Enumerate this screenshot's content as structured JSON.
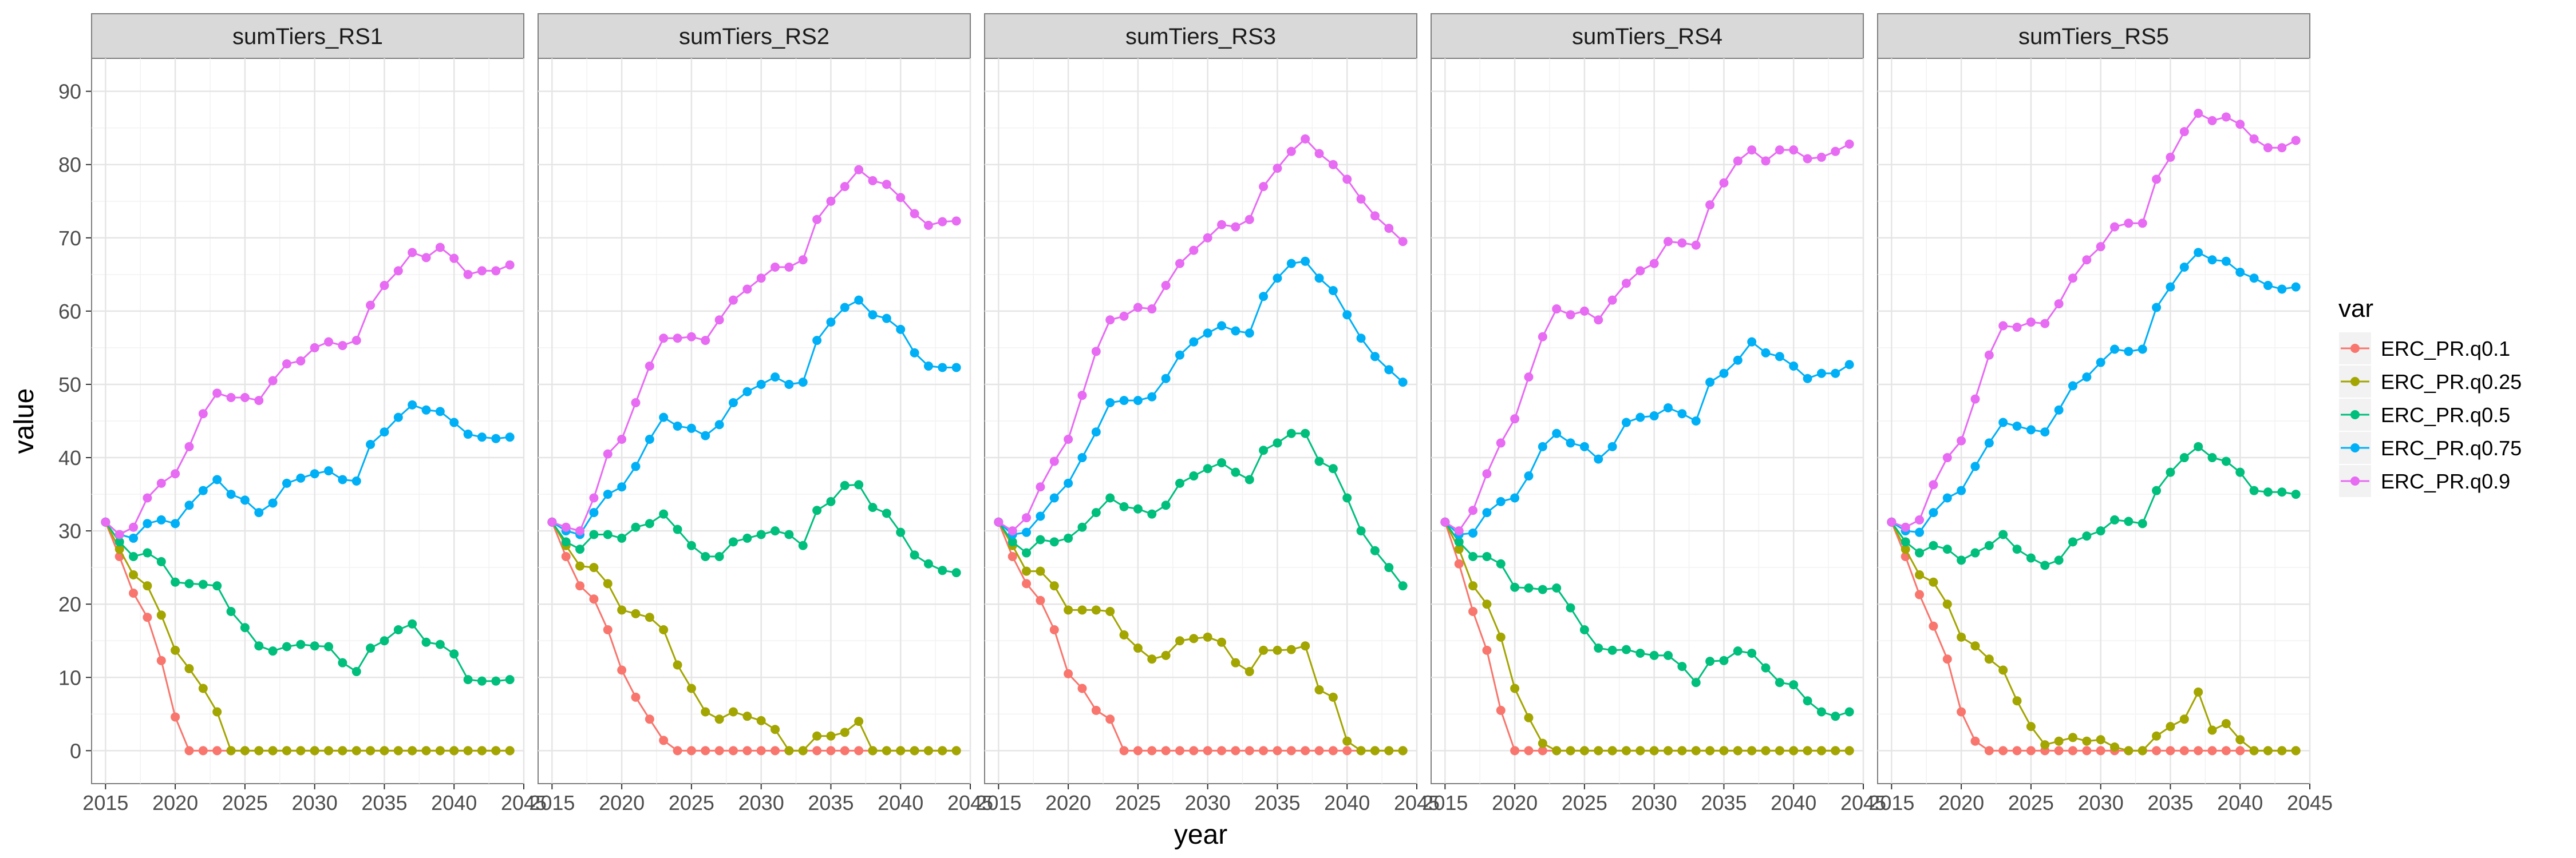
{
  "chart_data": {
    "type": "line",
    "xlabel": "year",
    "ylabel": "value",
    "xlim": [
      2014,
      2045
    ],
    "ylim": [
      -4.5,
      94.5
    ],
    "x_ticks": [
      2015,
      2020,
      2025,
      2030,
      2035,
      2040,
      2045
    ],
    "y_ticks": [
      0,
      10,
      20,
      30,
      40,
      50,
      60,
      70,
      80,
      90
    ],
    "grid": true,
    "markers": "filled-circles",
    "legend": {
      "title": "var",
      "position": "right"
    },
    "x": [
      2015,
      2016,
      2017,
      2018,
      2019,
      2020,
      2021,
      2022,
      2023,
      2024,
      2025,
      2026,
      2027,
      2028,
      2029,
      2030,
      2031,
      2032,
      2033,
      2034,
      2035,
      2036,
      2037,
      2038,
      2039,
      2040,
      2041,
      2042,
      2043,
      2044
    ],
    "series_names": [
      "ERC_PR.q0.1",
      "ERC_PR.q0.25",
      "ERC_PR.q0.5",
      "ERC_PR.q0.75",
      "ERC_PR.q0.9"
    ],
    "colors": [
      "#F8766D",
      "#A3A500",
      "#00BF7D",
      "#00B0F6",
      "#E76BF3"
    ],
    "panels": [
      {
        "label": "sumTiers_RS1",
        "series": [
          {
            "name": "ERC_PR.q0.1",
            "values": [
              31.2,
              26.5,
              21.5,
              18.2,
              12.3,
              4.6,
              0,
              0,
              0,
              0,
              0,
              0,
              0,
              0,
              0,
              0,
              0,
              0,
              0,
              0,
              0,
              0,
              0,
              0,
              0,
              0,
              0,
              0,
              0,
              0
            ]
          },
          {
            "name": "ERC_PR.q0.25",
            "values": [
              31.2,
              27.5,
              24.0,
              22.5,
              18.5,
              13.7,
              11.2,
              8.5,
              5.3,
              0,
              0,
              0,
              0,
              0,
              0,
              0,
              0,
              0,
              0,
              0,
              0,
              0,
              0,
              0,
              0,
              0,
              0,
              0,
              0,
              0
            ]
          },
          {
            "name": "ERC_PR.q0.5",
            "values": [
              31.2,
              28.5,
              26.5,
              27.0,
              25.8,
              23.0,
              22.8,
              22.7,
              22.5,
              19.0,
              16.8,
              14.3,
              13.6,
              14.2,
              14.5,
              14.3,
              14.2,
              12.0,
              10.8,
              14.0,
              15.0,
              16.5,
              17.3,
              14.8,
              14.5,
              13.2,
              9.7,
              9.5,
              9.5,
              9.7
            ]
          },
          {
            "name": "ERC_PR.q0.75",
            "values": [
              31.2,
              29.5,
              29.0,
              31.0,
              31.5,
              31.0,
              33.5,
              35.5,
              37.0,
              35.0,
              34.2,
              32.5,
              33.8,
              36.5,
              37.2,
              37.8,
              38.2,
              37.0,
              36.8,
              41.8,
              43.5,
              45.5,
              47.2,
              46.5,
              46.3,
              44.8,
              43.2,
              42.8,
              42.6,
              42.8
            ]
          },
          {
            "name": "ERC_PR.q0.9",
            "values": [
              31.2,
              29.5,
              30.5,
              34.5,
              36.5,
              37.8,
              41.5,
              46.0,
              48.8,
              48.2,
              48.2,
              47.8,
              50.5,
              52.8,
              53.2,
              55.0,
              55.8,
              55.3,
              56.0,
              60.8,
              63.5,
              65.5,
              68.0,
              67.3,
              68.7,
              67.2,
              65.0,
              65.5,
              65.5,
              66.3
            ]
          }
        ]
      },
      {
        "label": "sumTiers_RS2",
        "series": [
          {
            "name": "ERC_PR.q0.1",
            "values": [
              31.2,
              26.5,
              22.5,
              20.7,
              16.5,
              11.0,
              7.3,
              4.3,
              1.4,
              0,
              0,
              0,
              0,
              0,
              0,
              0,
              0,
              0,
              0,
              0,
              0,
              0,
              0,
              0,
              0,
              0,
              0,
              0,
              0,
              0
            ]
          },
          {
            "name": "ERC_PR.q0.25",
            "values": [
              31.2,
              28.0,
              25.2,
              25.0,
              22.8,
              19.2,
              18.7,
              18.2,
              16.5,
              11.7,
              8.5,
              5.3,
              4.3,
              5.3,
              4.7,
              4.1,
              2.9,
              0,
              0,
              2.0,
              2.0,
              2.5,
              4.0,
              0,
              0,
              0,
              0,
              0,
              0,
              0
            ]
          },
          {
            "name": "ERC_PR.q0.5",
            "values": [
              31.2,
              28.5,
              27.5,
              29.5,
              29.5,
              29.0,
              30.5,
              31.0,
              32.3,
              30.2,
              28.0,
              26.5,
              26.5,
              28.5,
              29.0,
              29.5,
              30.0,
              29.5,
              28.0,
              32.8,
              34.0,
              36.2,
              36.3,
              33.2,
              32.4,
              29.8,
              26.7,
              25.5,
              24.6,
              24.3
            ]
          },
          {
            "name": "ERC_PR.q0.75",
            "values": [
              31.2,
              30.0,
              29.5,
              32.5,
              35.0,
              36.0,
              38.8,
              42.5,
              45.5,
              44.3,
              44.0,
              43.0,
              44.5,
              47.5,
              49.0,
              50.0,
              51.0,
              50.0,
              50.3,
              56.0,
              58.5,
              60.5,
              61.5,
              59.5,
              59.0,
              57.5,
              54.3,
              52.5,
              52.3,
              52.3
            ]
          },
          {
            "name": "ERC_PR.q0.9",
            "values": [
              31.2,
              30.5,
              30.0,
              34.5,
              40.5,
              42.5,
              47.5,
              52.5,
              56.3,
              56.3,
              56.5,
              56.0,
              58.8,
              61.5,
              63.0,
              64.5,
              66.0,
              66.0,
              67.0,
              72.5,
              75.0,
              77.0,
              79.3,
              77.8,
              77.3,
              75.5,
              73.3,
              71.7,
              72.2,
              72.3
            ]
          }
        ]
      },
      {
        "label": "sumTiers_RS3",
        "series": [
          {
            "name": "ERC_PR.q0.1",
            "values": [
              31.2,
              26.5,
              22.8,
              20.5,
              16.5,
              10.5,
              8.5,
              5.5,
              4.3,
              0,
              0,
              0,
              0,
              0,
              0,
              0,
              0,
              0,
              0,
              0,
              0,
              0,
              0,
              0,
              0,
              0,
              0,
              0,
              0,
              0
            ]
          },
          {
            "name": "ERC_PR.q0.25",
            "values": [
              31.2,
              28.0,
              24.5,
              24.5,
              22.5,
              19.2,
              19.2,
              19.2,
              19.0,
              15.8,
              14.0,
              12.5,
              13.0,
              15.0,
              15.3,
              15.5,
              14.8,
              12.0,
              10.8,
              13.7,
              13.7,
              13.8,
              14.3,
              8.3,
              7.3,
              1.3,
              0,
              0,
              0,
              0
            ]
          },
          {
            "name": "ERC_PR.q0.5",
            "values": [
              31.2,
              28.5,
              27.0,
              28.8,
              28.5,
              29.0,
              30.5,
              32.5,
              34.5,
              33.3,
              33.0,
              32.3,
              33.5,
              36.5,
              37.5,
              38.5,
              39.3,
              38.0,
              37.0,
              41.0,
              42.0,
              43.3,
              43.3,
              39.5,
              38.5,
              34.5,
              30.0,
              27.3,
              25.0,
              22.5
            ]
          },
          {
            "name": "ERC_PR.q0.75",
            "values": [
              31.2,
              29.5,
              29.8,
              32.0,
              34.5,
              36.5,
              40.0,
              43.5,
              47.5,
              47.8,
              47.8,
              48.3,
              50.8,
              54.0,
              55.8,
              57.0,
              58.0,
              57.3,
              57.0,
              62.0,
              64.5,
              66.5,
              66.8,
              64.5,
              62.8,
              59.5,
              56.3,
              53.8,
              52.0,
              50.3
            ]
          },
          {
            "name": "ERC_PR.q0.9",
            "values": [
              31.2,
              30.0,
              31.8,
              36.0,
              39.5,
              42.5,
              48.5,
              54.5,
              58.8,
              59.3,
              60.5,
              60.3,
              63.5,
              66.5,
              68.3,
              70.0,
              71.8,
              71.5,
              72.5,
              77.0,
              79.5,
              81.8,
              83.5,
              81.5,
              80.0,
              78.0,
              75.3,
              73.0,
              71.3,
              69.5
            ]
          }
        ]
      },
      {
        "label": "sumTiers_RS4",
        "series": [
          {
            "name": "ERC_PR.q0.1",
            "values": [
              31.2,
              25.5,
              19.0,
              13.7,
              5.5,
              0,
              0,
              0,
              0,
              0,
              0,
              0,
              0,
              0,
              0,
              0,
              0,
              0,
              0,
              0,
              0,
              0,
              0,
              0,
              0,
              0,
              0,
              0,
              0,
              0
            ]
          },
          {
            "name": "ERC_PR.q0.25",
            "values": [
              31.2,
              27.5,
              22.5,
              20.0,
              15.5,
              8.5,
              4.5,
              1.0,
              0,
              0,
              0,
              0,
              0,
              0,
              0,
              0,
              0,
              0,
              0,
              0,
              0,
              0,
              0,
              0,
              0,
              0,
              0,
              0,
              0,
              0
            ]
          },
          {
            "name": "ERC_PR.q0.5",
            "values": [
              31.2,
              28.5,
              26.5,
              26.5,
              25.5,
              22.3,
              22.2,
              22.0,
              22.2,
              19.5,
              16.5,
              14.0,
              13.7,
              13.8,
              13.3,
              13.0,
              13.0,
              11.5,
              9.3,
              12.2,
              12.3,
              13.6,
              13.3,
              11.3,
              9.3,
              9.0,
              6.8,
              5.3,
              4.7,
              5.3
            ]
          },
          {
            "name": "ERC_PR.q0.75",
            "values": [
              31.2,
              29.5,
              29.7,
              32.5,
              34.0,
              34.5,
              37.5,
              41.5,
              43.3,
              42.0,
              41.5,
              39.8,
              41.5,
              44.8,
              45.5,
              45.7,
              46.8,
              46.0,
              45.0,
              50.3,
              51.5,
              53.3,
              55.8,
              54.3,
              53.8,
              52.5,
              50.8,
              51.5,
              51.5,
              52.7
            ]
          },
          {
            "name": "ERC_PR.q0.9",
            "values": [
              31.2,
              30.0,
              32.8,
              37.8,
              42.0,
              45.3,
              51.0,
              56.5,
              60.3,
              59.5,
              60.0,
              58.8,
              61.5,
              63.8,
              65.5,
              66.5,
              69.5,
              69.3,
              69.0,
              74.5,
              77.5,
              80.5,
              82.0,
              80.5,
              82.0,
              82.0,
              80.8,
              81.0,
              81.8,
              82.8
            ]
          }
        ]
      },
      {
        "label": "sumTiers_RS5",
        "series": [
          {
            "name": "ERC_PR.q0.1",
            "values": [
              31.2,
              26.5,
              21.3,
              17.0,
              12.5,
              5.3,
              1.3,
              0,
              0,
              0,
              0,
              0,
              0,
              0,
              0,
              0,
              0,
              0,
              0,
              0,
              0,
              0,
              0,
              0,
              0,
              0,
              0,
              0,
              0,
              0
            ]
          },
          {
            "name": "ERC_PR.q0.25",
            "values": [
              31.2,
              27.5,
              24.0,
              23.0,
              20.0,
              15.5,
              14.3,
              12.5,
              11.0,
              6.8,
              3.3,
              0.8,
              1.3,
              1.8,
              1.3,
              1.5,
              0.5,
              0,
              0,
              2.0,
              3.3,
              4.3,
              8.0,
              2.8,
              3.7,
              1.5,
              0,
              0,
              0,
              0
            ]
          },
          {
            "name": "ERC_PR.q0.5",
            "values": [
              31.2,
              28.5,
              27.0,
              28.0,
              27.5,
              26.0,
              27.0,
              28.0,
              29.5,
              27.5,
              26.3,
              25.3,
              26.0,
              28.5,
              29.3,
              30.0,
              31.5,
              31.3,
              31.0,
              35.5,
              38.0,
              40.0,
              41.5,
              40.0,
              39.5,
              38.0,
              35.5,
              35.3,
              35.3,
              35.0
            ]
          },
          {
            "name": "ERC_PR.q0.75",
            "values": [
              31.2,
              30.0,
              29.8,
              32.5,
              34.5,
              35.5,
              38.8,
              42.0,
              44.8,
              44.3,
              43.8,
              43.5,
              46.5,
              49.8,
              51.0,
              53.0,
              54.8,
              54.5,
              54.8,
              60.5,
              63.3,
              66.0,
              68.0,
              67.0,
              66.8,
              65.3,
              64.5,
              63.5,
              63.0,
              63.3
            ]
          },
          {
            "name": "ERC_PR.q0.9",
            "values": [
              31.2,
              30.5,
              31.5,
              36.3,
              40.0,
              42.3,
              48.0,
              54.0,
              58.0,
              57.8,
              58.5,
              58.3,
              61.0,
              64.5,
              67.0,
              68.8,
              71.5,
              72.0,
              72.0,
              78.0,
              81.0,
              84.5,
              87.0,
              86.0,
              86.5,
              85.5,
              83.5,
              82.3,
              82.3,
              83.3
            ]
          }
        ]
      }
    ]
  }
}
